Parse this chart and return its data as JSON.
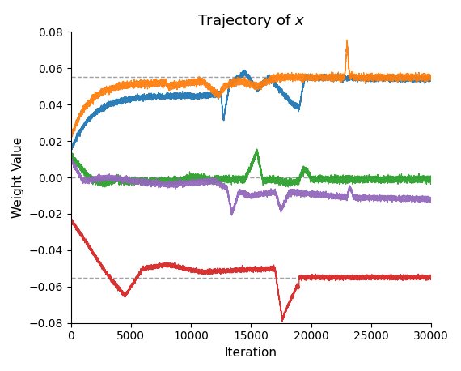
{
  "title": "Trajectory of $x$",
  "xlabel": "Iteration",
  "ylabel": "Weight Value",
  "xlim": [
    0,
    30000
  ],
  "ylim": [
    -0.08,
    0.08
  ],
  "yticks": [
    -0.08,
    -0.06,
    -0.04,
    -0.02,
    0.0,
    0.02,
    0.04,
    0.06,
    0.08
  ],
  "xticks": [
    0,
    5000,
    10000,
    15000,
    20000,
    25000,
    30000
  ],
  "hlines": [
    0.055,
    0.0,
    -0.055
  ],
  "line_colors": [
    "#1f77b4",
    "#ff7f0e",
    "#2ca02c",
    "#9467bd",
    "#d62728"
  ],
  "figsize": [
    5.7,
    4.58
  ],
  "dpi": 100,
  "title_fontsize": 13,
  "axis_label_fontsize": 11,
  "tick_fontsize": 10
}
